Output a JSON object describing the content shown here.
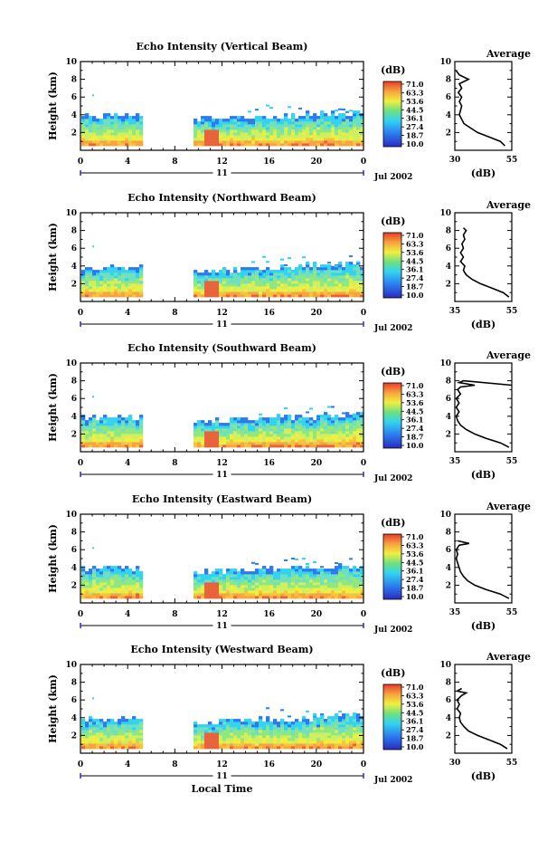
{
  "chart_data": [
    {
      "type": "heatmap",
      "title": "Echo Intensity (Vertical Beam)",
      "ylabel": "Height (km)",
      "x_ticks": [
        "0",
        "4",
        "8",
        "12",
        "16",
        "20",
        "0"
      ],
      "y_ticks": [
        "2",
        "4",
        "6",
        "8",
        "10"
      ],
      "xlim": [
        0,
        24
      ],
      "ylim": [
        0,
        10
      ],
      "date_center": "11",
      "date_label": "Jul 2002",
      "colorbar_unit": "(dB)",
      "colorbar_ticks": [
        "71.0",
        "63.3",
        "53.6",
        "44.5",
        "36.1",
        "27.4",
        "18.7",
        "10.0"
      ],
      "data_gap_hours": [
        5.2,
        9.3
      ],
      "profile": {
        "title": "Average",
        "xlabel": "(dB)",
        "x_ticks": [
          "30",
          "55"
        ],
        "xlim": [
          30,
          55
        ],
        "y_ticks": [
          "2",
          "4",
          "6",
          "8",
          "10"
        ],
        "points": [
          [
            52.0,
            0.5
          ],
          [
            50.0,
            1.0
          ],
          [
            45.0,
            1.5
          ],
          [
            40.0,
            2.0
          ],
          [
            37.0,
            2.5
          ],
          [
            34.0,
            3.0
          ],
          [
            33.0,
            3.5
          ],
          [
            32.0,
            4.0
          ],
          [
            32.5,
            4.5
          ],
          [
            33.0,
            5.0
          ],
          [
            32.0,
            5.5
          ],
          [
            33.0,
            6.0
          ],
          [
            31.5,
            6.5
          ],
          [
            33.0,
            7.0
          ],
          [
            32.0,
            7.5
          ],
          [
            36.0,
            8.0
          ],
          [
            32.0,
            8.5
          ],
          [
            30.5,
            9.0
          ]
        ]
      }
    },
    {
      "type": "heatmap",
      "title": "Echo Intensity (Northward Beam)",
      "ylabel": "Height (km)",
      "x_ticks": [
        "0",
        "4",
        "8",
        "12",
        "16",
        "20",
        "0"
      ],
      "y_ticks": [
        "2",
        "4",
        "6",
        "8",
        "10"
      ],
      "xlim": [
        0,
        24
      ],
      "ylim": [
        0,
        10
      ],
      "date_center": "11",
      "date_label": "Jul 2002",
      "colorbar_unit": "(dB)",
      "colorbar_ticks": [
        "71.0",
        "63.3",
        "53.6",
        "44.5",
        "36.1",
        "27.4",
        "18.7",
        "10.0"
      ],
      "data_gap_hours": [
        5.2,
        9.3
      ],
      "profile": {
        "title": "Average",
        "xlabel": "(dB)",
        "x_ticks": [
          "35",
          "55"
        ],
        "xlim": [
          35,
          55
        ],
        "y_ticks": [
          "2",
          "4",
          "6",
          "8",
          "10"
        ],
        "points": [
          [
            54.0,
            0.5
          ],
          [
            52.0,
            1.0
          ],
          [
            48.0,
            1.5
          ],
          [
            44.0,
            2.0
          ],
          [
            41.0,
            2.5
          ],
          [
            39.0,
            3.0
          ],
          [
            38.0,
            3.5
          ],
          [
            38.5,
            4.0
          ],
          [
            37.0,
            4.5
          ],
          [
            38.0,
            5.0
          ],
          [
            37.0,
            5.5
          ],
          [
            38.0,
            6.0
          ],
          [
            37.5,
            6.5
          ],
          [
            38.5,
            7.0
          ],
          [
            38.0,
            7.5
          ],
          [
            39.0,
            8.0
          ],
          [
            38.0,
            8.3
          ]
        ]
      }
    },
    {
      "type": "heatmap",
      "title": "Echo Intensity (Southward Beam)",
      "ylabel": "Height (km)",
      "x_ticks": [
        "0",
        "4",
        "8",
        "12",
        "16",
        "20",
        "0"
      ],
      "y_ticks": [
        "2",
        "4",
        "6",
        "8",
        "10"
      ],
      "xlim": [
        0,
        24
      ],
      "ylim": [
        0,
        10
      ],
      "date_center": "11",
      "date_label": "Jul 2002",
      "colorbar_unit": "(dB)",
      "colorbar_ticks": [
        "71.0",
        "63.3",
        "53.6",
        "44.5",
        "36.1",
        "27.4",
        "18.7",
        "10.0"
      ],
      "data_gap_hours": [
        5.2,
        9.3
      ],
      "profile": {
        "title": "Average",
        "xlabel": "(dB)",
        "x_ticks": [
          "35",
          "55"
        ],
        "xlim": [
          35,
          55
        ],
        "y_ticks": [
          "2",
          "4",
          "6",
          "8",
          "10"
        ],
        "points": [
          [
            54.0,
            0.5
          ],
          [
            51.0,
            1.0
          ],
          [
            46.0,
            1.5
          ],
          [
            42.0,
            2.0
          ],
          [
            39.0,
            2.5
          ],
          [
            37.0,
            3.0
          ],
          [
            36.0,
            3.5
          ],
          [
            35.5,
            4.0
          ],
          [
            36.5,
            4.5
          ],
          [
            35.5,
            5.0
          ],
          [
            36.5,
            5.5
          ],
          [
            35.5,
            6.0
          ],
          [
            37.0,
            6.5
          ],
          [
            36.0,
            7.0
          ],
          [
            37.0,
            7.3
          ],
          [
            42.0,
            7.5
          ],
          [
            36.5,
            7.8
          ],
          [
            38.0,
            8.0
          ],
          [
            55.0,
            7.5
          ]
        ]
      }
    },
    {
      "type": "heatmap",
      "title": "Echo Intensity (Eastward Beam)",
      "ylabel": "Height (km)",
      "x_ticks": [
        "0",
        "4",
        "8",
        "12",
        "16",
        "20",
        "0"
      ],
      "y_ticks": [
        "2",
        "4",
        "6",
        "8",
        "10"
      ],
      "xlim": [
        0,
        24
      ],
      "ylim": [
        0,
        10
      ],
      "date_center": "11",
      "date_label": "Jul 2002",
      "colorbar_unit": "(dB)",
      "colorbar_ticks": [
        "71.0",
        "63.3",
        "53.6",
        "44.5",
        "36.1",
        "27.4",
        "18.7",
        "10.0"
      ],
      "data_gap_hours": [
        5.2,
        9.3
      ],
      "profile": {
        "title": "Average",
        "xlabel": "(dB)",
        "x_ticks": [
          "35",
          "55"
        ],
        "xlim": [
          35,
          55
        ],
        "y_ticks": [
          "2",
          "4",
          "6",
          "8",
          "10"
        ],
        "points": [
          [
            54.0,
            0.5
          ],
          [
            51.0,
            1.0
          ],
          [
            46.0,
            1.5
          ],
          [
            42.0,
            2.0
          ],
          [
            39.5,
            2.5
          ],
          [
            38.0,
            3.0
          ],
          [
            37.0,
            3.5
          ],
          [
            36.5,
            4.0
          ],
          [
            36.0,
            4.5
          ],
          [
            35.5,
            5.0
          ],
          [
            36.0,
            5.5
          ],
          [
            35.5,
            6.0
          ],
          [
            36.5,
            6.5
          ],
          [
            40.0,
            6.7
          ],
          [
            36.0,
            7.0
          ]
        ]
      }
    },
    {
      "type": "heatmap",
      "title": "Echo Intensity (Westward Beam)",
      "ylabel": "Height (km)",
      "xlabel": "Local Time",
      "x_ticks": [
        "0",
        "4",
        "8",
        "12",
        "16",
        "20",
        "0"
      ],
      "y_ticks": [
        "2",
        "4",
        "6",
        "8",
        "10"
      ],
      "xlim": [
        0,
        24
      ],
      "ylim": [
        0,
        10
      ],
      "date_center": "11",
      "date_label": "Jul 2002",
      "colorbar_unit": "(dB)",
      "colorbar_ticks": [
        "71.0",
        "63.3",
        "53.6",
        "44.5",
        "36.1",
        "27.4",
        "18.7",
        "10.0"
      ],
      "data_gap_hours": [
        5.2,
        9.3
      ],
      "profile": {
        "title": "Average",
        "xlabel": "(dB)",
        "x_ticks": [
          "30",
          "55"
        ],
        "xlim": [
          30,
          55
        ],
        "y_ticks": [
          "2",
          "4",
          "6",
          "8",
          "10"
        ],
        "points": [
          [
            53.0,
            0.5
          ],
          [
            50.0,
            1.0
          ],
          [
            45.0,
            1.5
          ],
          [
            40.0,
            2.0
          ],
          [
            36.0,
            2.5
          ],
          [
            34.0,
            3.0
          ],
          [
            32.5,
            3.5
          ],
          [
            32.0,
            4.0
          ],
          [
            32.5,
            4.5
          ],
          [
            31.0,
            5.0
          ],
          [
            32.0,
            5.5
          ],
          [
            31.0,
            6.0
          ],
          [
            33.0,
            6.5
          ],
          [
            35.0,
            6.8
          ],
          [
            31.0,
            7.0
          ],
          [
            33.0,
            7.3
          ]
        ]
      }
    }
  ]
}
